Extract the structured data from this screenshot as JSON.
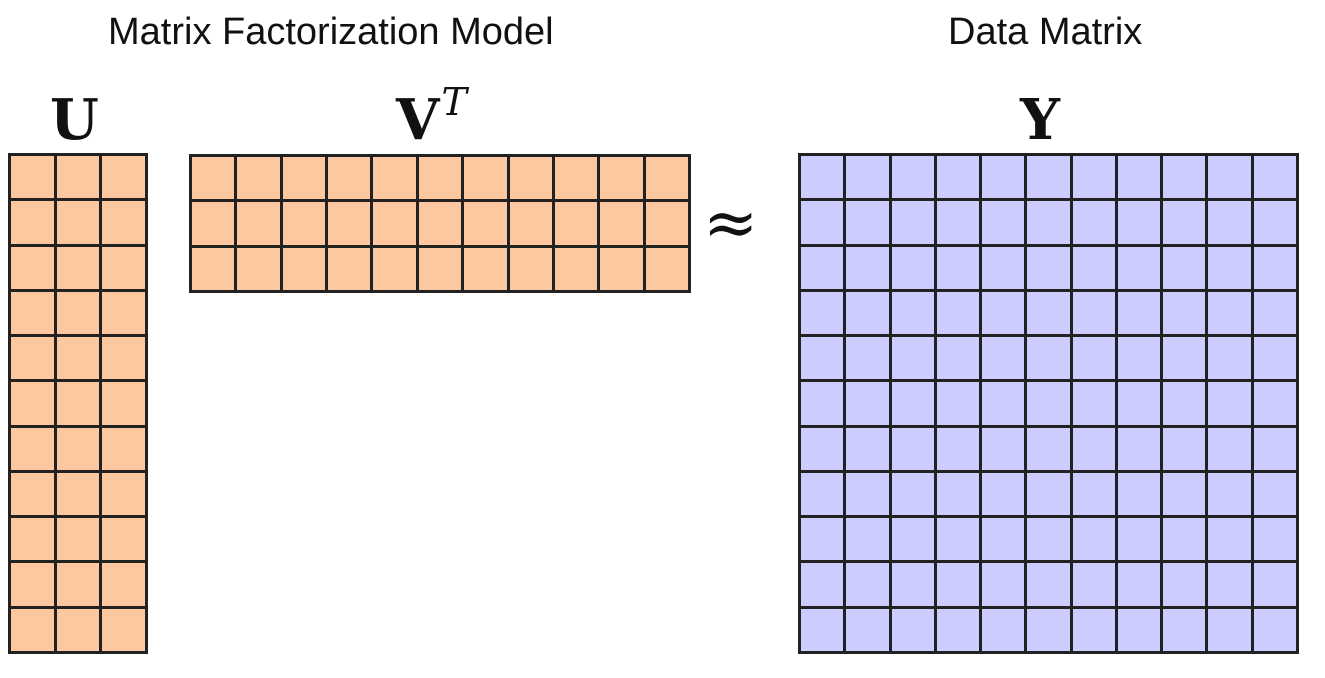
{
  "headings": {
    "model": "Matrix Factorization Model",
    "data": "Data Matrix"
  },
  "matrices": {
    "u": {
      "symbol": "U",
      "rows": 11,
      "cols": 3,
      "fill": "#fdc8a0"
    },
    "vt": {
      "symbol": "V",
      "superscript": "T",
      "rows": 3,
      "cols": 11,
      "fill": "#fdc8a0"
    },
    "y": {
      "symbol": "Y",
      "rows": 11,
      "cols": 11,
      "fill": "#ccccff"
    }
  },
  "relation": {
    "symbol": "≈"
  },
  "colors": {
    "factor_fill": "#fdc8a0",
    "data_fill": "#ccccff",
    "grid_line": "#222222"
  }
}
